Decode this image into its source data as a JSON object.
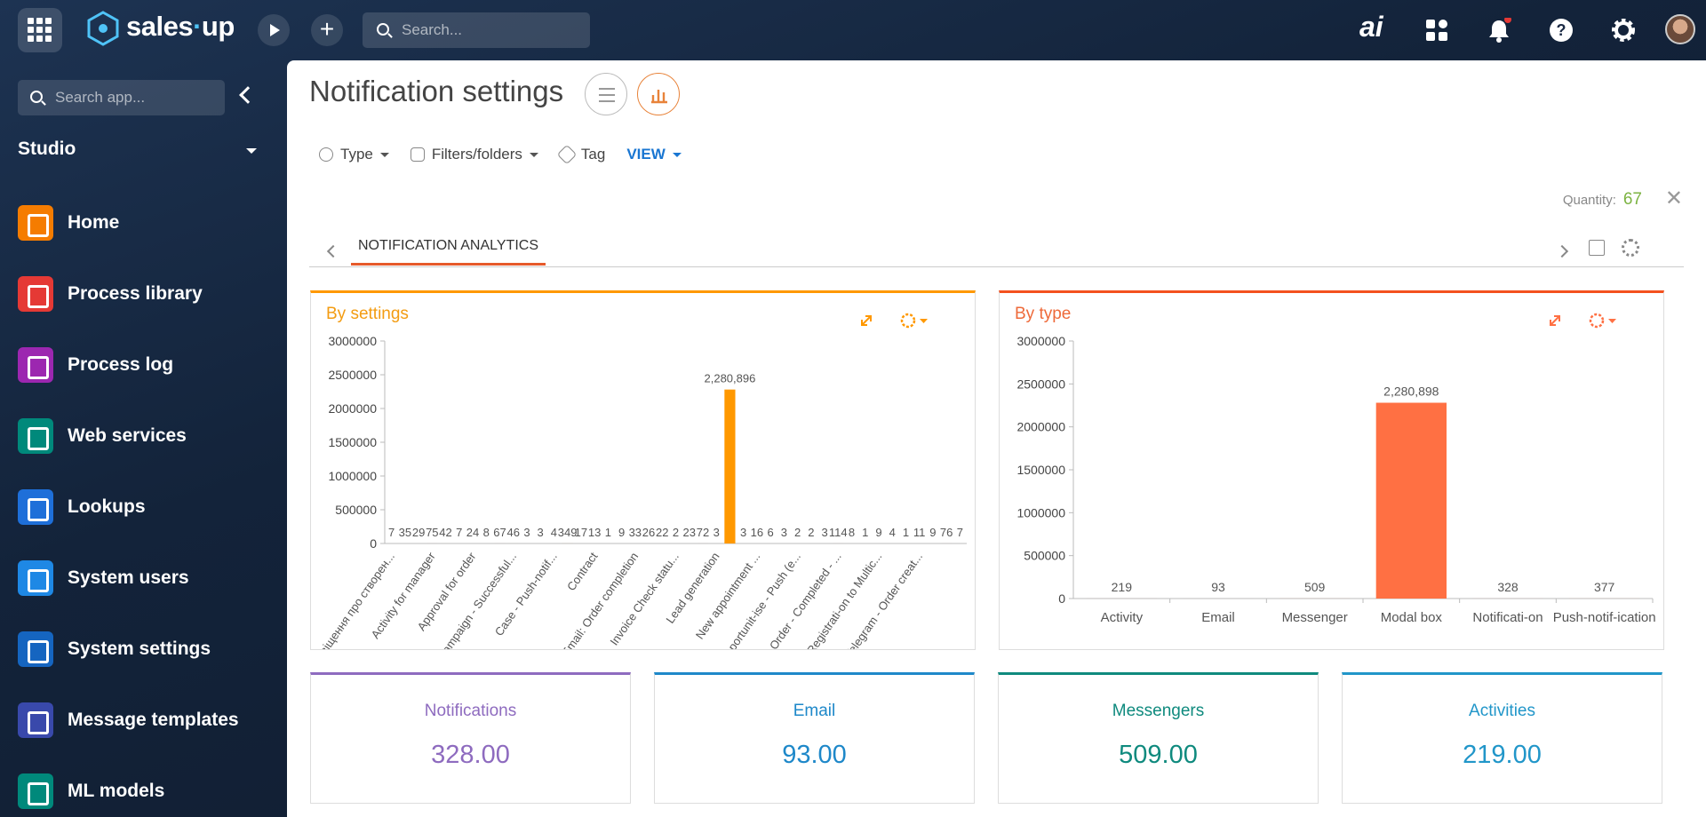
{
  "header": {
    "logo_left": "sales",
    "logo_right": "up",
    "search_placeholder": "Search...",
    "ai": "ai"
  },
  "sidebar": {
    "search_placeholder": "Search app...",
    "section": "Studio",
    "items": [
      "Home",
      "Process library",
      "Process log",
      "Web services",
      "Lookups",
      "System users",
      "System settings",
      "Message templates",
      "ML models"
    ]
  },
  "main": {
    "title": "Notification settings",
    "filters": [
      "Type",
      "Filters/folders",
      "Tag"
    ],
    "view": "VIEW",
    "quantity_label": "Quantity:",
    "quantity": "67",
    "tab": "NOTIFICATION ANALYTICS"
  },
  "chart_data": [
    {
      "type": "bar",
      "title": "By settings",
      "color": "#ff9800",
      "categories": [
        "Сповіщення про створен...",
        null,
        null,
        "Activity for manager",
        null,
        null,
        "Approval for order",
        null,
        null,
        "Campaign - Successful...",
        null,
        null,
        "Case - Push-notif...",
        null,
        null,
        "Contract",
        null,
        null,
        "Email: Order completion",
        null,
        null,
        "Invoice Check statu...",
        null,
        null,
        "Lead generation",
        null,
        null,
        "New appointment ...",
        null,
        null,
        "Opportunit-ise - Push (e...",
        null,
        null,
        "Order - Completed - ...",
        null,
        null,
        "Registrati-on to Multic...",
        null,
        null,
        "Telegram - Order creat...",
        null,
        null,
        null
      ],
      "values": [
        7,
        35,
        29,
        75,
        42,
        7,
        24,
        8,
        67,
        46,
        3,
        3,
        4,
        349,
        17,
        13,
        1,
        9,
        33,
        26,
        22,
        2,
        23,
        72,
        3,
        2280896,
        3,
        16,
        6,
        3,
        2,
        2,
        3,
        114,
        8,
        1,
        9,
        4,
        1,
        11,
        9,
        76,
        7
      ],
      "value_labels": [
        "7",
        "35",
        "29",
        "75",
        "42",
        "7",
        "24",
        "8",
        "67",
        "46",
        "3",
        "3",
        "4",
        "349",
        "17",
        "13",
        "1",
        "9",
        "33",
        "26",
        "22",
        "2",
        "23",
        "72",
        "3",
        "2,280,896",
        "3",
        "16",
        "6",
        "3",
        "2",
        "2",
        "3",
        "114",
        "8",
        "1",
        "9",
        "4",
        "1",
        "11",
        "9",
        "76",
        "7"
      ],
      "ylim": [
        0,
        3000000
      ],
      "yticks": [
        0,
        500000,
        1000000,
        1500000,
        2000000,
        2500000,
        3000000
      ]
    },
    {
      "type": "bar",
      "title": "By type",
      "color": "#ff7043",
      "categories": [
        "Activity",
        "Email",
        "Messenger",
        "Modal box",
        "Notificati-on",
        "Push-notif-ication"
      ],
      "values": [
        219,
        93,
        509,
        2280898,
        328,
        377
      ],
      "value_labels": [
        "219",
        "93",
        "509",
        "2,280,898",
        "328",
        "377"
      ],
      "ylim": [
        0,
        3000000
      ],
      "yticks": [
        0,
        500000,
        1000000,
        1500000,
        2000000,
        2500000,
        3000000
      ]
    }
  ],
  "kpis": [
    {
      "label": "Notifications",
      "value": "328.00"
    },
    {
      "label": "Email",
      "value": "93.00"
    },
    {
      "label": "Messengers",
      "value": "509.00"
    },
    {
      "label": "Activities",
      "value": "219.00"
    }
  ]
}
